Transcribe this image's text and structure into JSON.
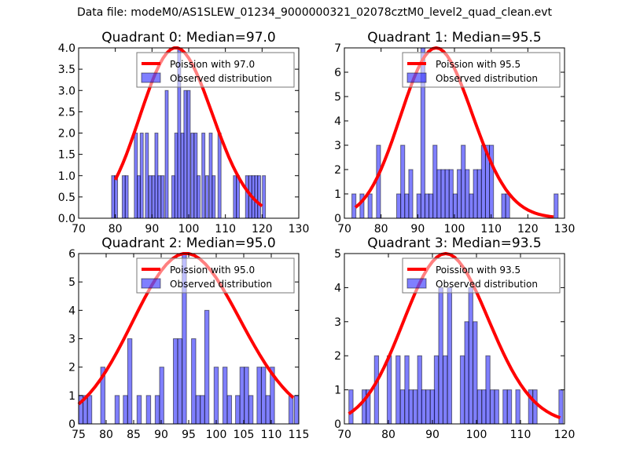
{
  "suptitle": "Data file: modeM0/AS1SLEW_01234_9000000321_02078cztM0_level2_quad_clean.evt",
  "chart_data": [
    {
      "type": "bar",
      "title": "Quadrant 0: Median=97.0",
      "xlabel": "",
      "ylabel": "",
      "xlim": [
        70,
        130
      ],
      "ylim": [
        0,
        4.0
      ],
      "xticks": [
        "70",
        "80",
        "90",
        "100",
        "110",
        "120",
        "130"
      ],
      "yticks": [
        "0.0",
        "0.5",
        "1.0",
        "1.5",
        "2.0",
        "2.5",
        "3.0",
        "3.5",
        "4.0"
      ],
      "legend": {
        "position": "top-right",
        "entries": [
          "Poission with 97.0",
          "Observed distribution"
        ]
      },
      "bin_width": 0.84,
      "bars": [
        [
          79.4,
          1
        ],
        [
          80.2,
          1
        ],
        [
          82.3,
          1
        ],
        [
          83.1,
          1
        ],
        [
          85.6,
          2
        ],
        [
          86.4,
          1
        ],
        [
          87.2,
          2
        ],
        [
          88.6,
          2
        ],
        [
          89.5,
          1
        ],
        [
          90.4,
          1
        ],
        [
          91.2,
          2
        ],
        [
          92.0,
          1
        ],
        [
          92.9,
          1
        ],
        [
          94.0,
          3
        ],
        [
          95.8,
          1
        ],
        [
          96.6,
          2
        ],
        [
          97.4,
          4
        ],
        [
          98.3,
          2
        ],
        [
          99.1,
          3
        ],
        [
          100.0,
          3
        ],
        [
          101.0,
          2
        ],
        [
          101.9,
          2
        ],
        [
          102.7,
          1
        ],
        [
          104.0,
          2
        ],
        [
          105.0,
          1
        ],
        [
          106.0,
          2
        ],
        [
          106.8,
          1
        ],
        [
          108.4,
          2
        ],
        [
          112.6,
          1
        ],
        [
          113.4,
          1
        ],
        [
          115.9,
          1
        ],
        [
          116.8,
          1
        ],
        [
          117.6,
          1
        ],
        [
          118.4,
          1
        ],
        [
          119.2,
          1
        ],
        [
          120.5,
          1
        ]
      ],
      "poisson_mean": 97.0,
      "curve_range": [
        79.5,
        120.5
      ],
      "curve_peak": 4.0
    },
    {
      "type": "bar",
      "title": "Quadrant 1: Median=95.5",
      "xlabel": "",
      "ylabel": "",
      "xlim": [
        70,
        130
      ],
      "ylim": [
        0,
        7
      ],
      "xticks": [
        "70",
        "80",
        "90",
        "100",
        "110",
        "120",
        "130"
      ],
      "yticks": [
        "0",
        "1",
        "2",
        "3",
        "4",
        "5",
        "6",
        "7"
      ],
      "legend": {
        "position": "top-right",
        "entries": [
          "Poission with 95.5",
          "Observed distribution"
        ]
      },
      "bin_width": 1.1,
      "bars": [
        [
          72.6,
          1
        ],
        [
          74.8,
          1
        ],
        [
          77.0,
          1
        ],
        [
          79.3,
          3
        ],
        [
          84.8,
          1
        ],
        [
          85.9,
          3
        ],
        [
          87.0,
          1
        ],
        [
          88.1,
          2
        ],
        [
          90.3,
          1
        ],
        [
          91.4,
          7
        ],
        [
          92.5,
          1
        ],
        [
          93.6,
          1
        ],
        [
          94.7,
          3
        ],
        [
          95.8,
          2
        ],
        [
          96.9,
          2
        ],
        [
          98.0,
          2
        ],
        [
          99.1,
          2
        ],
        [
          100.2,
          1
        ],
        [
          101.3,
          2
        ],
        [
          102.4,
          3
        ],
        [
          103.5,
          2
        ],
        [
          104.6,
          1
        ],
        [
          105.7,
          2
        ],
        [
          106.8,
          2
        ],
        [
          107.9,
          3
        ],
        [
          109.0,
          3
        ],
        [
          110.1,
          3
        ],
        [
          113.4,
          1
        ],
        [
          114.5,
          1
        ],
        [
          127.7,
          1
        ]
      ],
      "poisson_mean": 95.5,
      "curve_range": [
        72.5,
        127.5
      ],
      "curve_peak": 7.0
    },
    {
      "type": "bar",
      "title": "Quadrant 2: Median=95.0",
      "xlabel": "",
      "ylabel": "",
      "xlim": [
        75,
        115
      ],
      "ylim": [
        0,
        6
      ],
      "xticks": [
        "75",
        "80",
        "85",
        "90",
        "95",
        "100",
        "105",
        "110",
        "115"
      ],
      "yticks": [
        "0",
        "1",
        "2",
        "3",
        "4",
        "5",
        "6"
      ],
      "legend": {
        "position": "top-right",
        "entries": [
          "Poission with 95.0",
          "Observed distribution"
        ]
      },
      "bin_width": 0.78,
      "bars": [
        [
          75.4,
          1
        ],
        [
          76.2,
          1
        ],
        [
          77.0,
          1
        ],
        [
          79.4,
          2
        ],
        [
          82.0,
          1
        ],
        [
          83.5,
          1
        ],
        [
          84.3,
          3
        ],
        [
          86.0,
          1
        ],
        [
          87.7,
          1
        ],
        [
          89.3,
          1
        ],
        [
          90.1,
          2
        ],
        [
          92.6,
          3
        ],
        [
          93.4,
          3
        ],
        [
          94.2,
          6
        ],
        [
          95.9,
          3
        ],
        [
          96.7,
          1
        ],
        [
          97.5,
          1
        ],
        [
          98.3,
          4
        ],
        [
          100.0,
          2
        ],
        [
          101.6,
          2
        ],
        [
          102.4,
          1
        ],
        [
          103.9,
          1
        ],
        [
          104.7,
          2
        ],
        [
          105.5,
          2
        ],
        [
          106.3,
          1
        ],
        [
          107.8,
          2
        ],
        [
          108.6,
          2
        ],
        [
          109.4,
          1
        ],
        [
          110.2,
          2
        ],
        [
          113.6,
          1
        ],
        [
          114.6,
          1
        ]
      ],
      "poisson_mean": 95.0,
      "curve_range": [
        75.0,
        114.9
      ],
      "curve_peak": 6.0
    },
    {
      "type": "bar",
      "title": "Quadrant 3: Median=93.5",
      "xlabel": "",
      "ylabel": "",
      "xlim": [
        70,
        120
      ],
      "ylim": [
        0,
        5
      ],
      "xticks": [
        "70",
        "80",
        "90",
        "100",
        "110",
        "120"
      ],
      "yticks": [
        "0",
        "1",
        "2",
        "3",
        "4",
        "5"
      ],
      "legend": {
        "position": "top-right",
        "entries": [
          "Poission with 93.5",
          "Observed distribution"
        ]
      },
      "bin_width": 0.96,
      "bars": [
        [
          71.5,
          1
        ],
        [
          74.5,
          1
        ],
        [
          75.4,
          1
        ],
        [
          77.3,
          2
        ],
        [
          80.2,
          2
        ],
        [
          82.2,
          2
        ],
        [
          83.2,
          1
        ],
        [
          84.2,
          2
        ],
        [
          85.1,
          1
        ],
        [
          86.1,
          1
        ],
        [
          87.1,
          2
        ],
        [
          88.0,
          1
        ],
        [
          89.0,
          1
        ],
        [
          90.0,
          1
        ],
        [
          90.9,
          2
        ],
        [
          91.9,
          4
        ],
        [
          92.9,
          2
        ],
        [
          93.9,
          4
        ],
        [
          96.8,
          2
        ],
        [
          97.8,
          3
        ],
        [
          98.7,
          4
        ],
        [
          99.7,
          3
        ],
        [
          100.7,
          1
        ],
        [
          101.7,
          1
        ],
        [
          102.6,
          2
        ],
        [
          103.6,
          1
        ],
        [
          104.6,
          1
        ],
        [
          106.5,
          1
        ],
        [
          107.5,
          1
        ],
        [
          109.4,
          1
        ],
        [
          112.3,
          1
        ],
        [
          113.3,
          1
        ],
        [
          119.2,
          1
        ]
      ],
      "poisson_mean": 93.5,
      "curve_range": [
        71.0,
        119.0
      ],
      "curve_peak": 5.0
    }
  ]
}
